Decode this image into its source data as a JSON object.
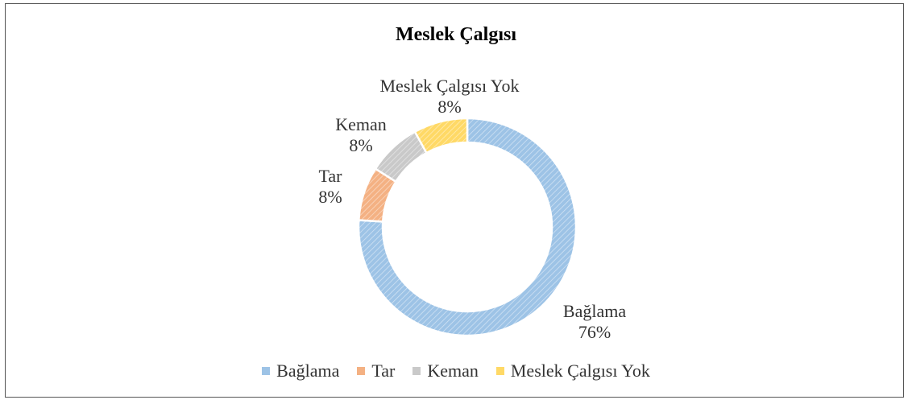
{
  "chart_data": {
    "type": "donut",
    "title": "Meslek Çalgısı",
    "categories": [
      "Bağlama",
      "Tar",
      "Keman",
      "Meslek Çalgısı Yok"
    ],
    "values": [
      76,
      8,
      8,
      8
    ],
    "value_labels": [
      "76%",
      "8%",
      "8%",
      "8%"
    ],
    "colors": [
      "#9dc3e6",
      "#f4b183",
      "#c9c9c9",
      "#ffd966"
    ],
    "legend": "bottom"
  }
}
